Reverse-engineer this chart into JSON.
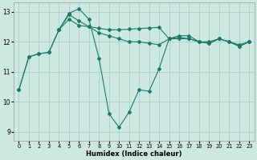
{
  "xlabel": "Humidex (Indice chaleur)",
  "background_color": "#cce8e0",
  "grid_color": "#aacfc7",
  "line_color": "#1a7a6a",
  "xlim": [
    -0.5,
    23.5
  ],
  "ylim": [
    8.7,
    13.3
  ],
  "xticks": [
    0,
    1,
    2,
    3,
    4,
    5,
    6,
    7,
    8,
    9,
    10,
    11,
    12,
    13,
    14,
    15,
    16,
    17,
    18,
    19,
    20,
    21,
    22,
    23
  ],
  "yticks": [
    9,
    10,
    11,
    12,
    13
  ],
  "line1_x": [
    0,
    1,
    2,
    3,
    4,
    5,
    6,
    7,
    8,
    9,
    10,
    11,
    12,
    13,
    14,
    15,
    16,
    17,
    18,
    19,
    20,
    21,
    22,
    23
  ],
  "line1_y": [
    10.4,
    11.5,
    11.6,
    11.65,
    12.4,
    12.75,
    12.55,
    12.5,
    12.45,
    12.4,
    12.4,
    12.42,
    12.44,
    12.46,
    12.48,
    12.1,
    12.1,
    12.1,
    12.0,
    12.0,
    12.1,
    12.0,
    11.9,
    12.0
  ],
  "line2_x": [
    0,
    1,
    2,
    3,
    4,
    5,
    6,
    7,
    8,
    9,
    10,
    11,
    12,
    13,
    14,
    15,
    16,
    17,
    18,
    19,
    20,
    21,
    22,
    23
  ],
  "line2_y": [
    10.4,
    11.5,
    11.6,
    11.65,
    12.4,
    12.95,
    13.1,
    12.75,
    11.45,
    9.6,
    9.15,
    9.65,
    10.4,
    10.35,
    11.1,
    12.1,
    12.2,
    12.2,
    12.0,
    11.95,
    12.1,
    12.0,
    11.85,
    12.0
  ],
  "line3_x": [
    4,
    5,
    6,
    7,
    8,
    9,
    10,
    11,
    12,
    13,
    14,
    15,
    16,
    17,
    18,
    19,
    20,
    21,
    22,
    23
  ],
  "line3_y": [
    12.4,
    12.9,
    12.7,
    12.5,
    12.3,
    12.2,
    12.1,
    12.0,
    12.0,
    11.95,
    11.9,
    12.1,
    12.15,
    12.1,
    12.0,
    11.95,
    12.1,
    12.0,
    11.85,
    12.0
  ]
}
